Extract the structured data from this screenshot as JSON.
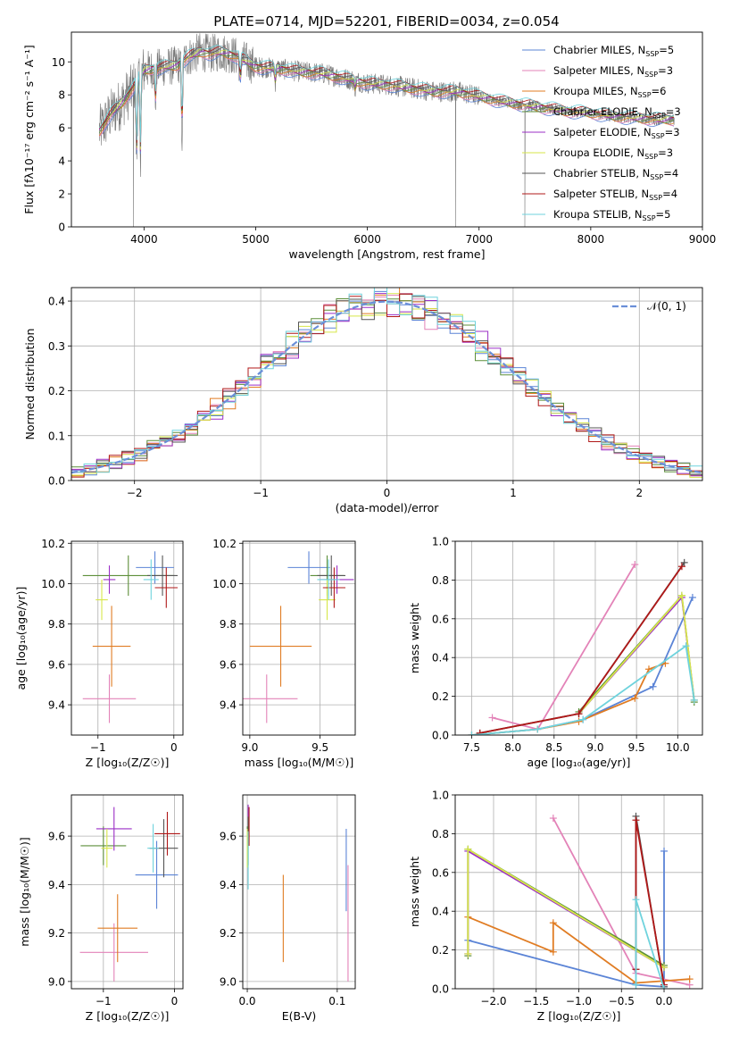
{
  "title": "PLATE=0714, MJD=52201, FIBERID=0034, z=0.054",
  "colors": {
    "chabrier_miles": "#5b84d6",
    "salpeter_miles": "#e383b8",
    "kroupa_miles": "#e07c23",
    "chabrier_elodie": "#5d8f3a",
    "salpeter_elodie": "#9b2fc6",
    "kroupa_elodie": "#d7e64a",
    "chabrier_stelib": "#555555",
    "salpeter_stelib": "#b01818",
    "kroupa_stelib": "#6fd3dd",
    "data": "#777777",
    "normal": "#6b8fd8"
  },
  "chart_data": [
    {
      "id": "spectrum",
      "type": "line",
      "title": "PLATE=0714, MJD=52201, FIBERID=0034, z=0.054",
      "xlabel": "wavelength [Angstrom, rest frame]",
      "ylabel": "Flux [fλ10⁻¹⁷ erg cm⁻² s⁻¹ A⁻¹]",
      "xlim": [
        3350,
        9000
      ],
      "ylim": [
        0,
        11.8
      ],
      "xticks": [
        "4000",
        "5000",
        "6000",
        "7000",
        "8000",
        "9000"
      ],
      "yticks": [
        "0",
        "2",
        "4",
        "6",
        "8",
        "10"
      ],
      "legend": "top-right",
      "series": [
        {
          "name": "Chabrier MILES, N_SSP=5",
          "label_main": "Chabrier MILES, N",
          "label_sub": "SSP",
          "label_tail": "=5"
        },
        {
          "name": "Salpeter MILES, N_SSP=3",
          "label_main": "Salpeter MILES, N",
          "label_sub": "SSP",
          "label_tail": "=3"
        },
        {
          "name": "Kroupa MILES, N_SSP=6",
          "label_main": "Kroupa MILES, N",
          "label_sub": "SSP",
          "label_tail": "=6"
        },
        {
          "name": "Chabrier ELODIE, N_SSP=3",
          "label_main": "Chabrier ELODIE, N",
          "label_sub": "SSP",
          "label_tail": "=3"
        },
        {
          "name": "Salpeter ELODIE, N_SSP=3",
          "label_main": "Salpeter ELODIE, N",
          "label_sub": "SSP",
          "label_tail": "=3"
        },
        {
          "name": "Kroupa ELODIE, N_SSP=3",
          "label_main": "Kroupa ELODIE, N",
          "label_sub": "SSP",
          "label_tail": "=3"
        },
        {
          "name": "Chabrier STELIB, N_SSP=4",
          "label_main": "Chabrier STELIB, N",
          "label_sub": "SSP",
          "label_tail": "=4"
        },
        {
          "name": "Salpeter STELIB, N_SSP=4",
          "label_main": "Salpeter STELIB, N",
          "label_sub": "SSP",
          "label_tail": "=4"
        },
        {
          "name": "Kroupa STELIB, N_SSP=5",
          "label_main": "Kroupa STELIB, N",
          "label_sub": "SSP",
          "label_tail": "=5"
        }
      ],
      "continuum": {
        "x": [
          3600,
          3700,
          3800,
          3900,
          4000,
          4100,
          4200,
          4300,
          4400,
          4500,
          4600,
          4700,
          4800,
          4900,
          5000,
          5200,
          5400,
          5600,
          5800,
          6000,
          6200,
          6400,
          6600,
          6800,
          7000,
          7200,
          7400,
          7600,
          7800,
          8000,
          8200,
          8400,
          8600,
          8750
        ],
        "y": [
          5.8,
          6.8,
          7.5,
          8.4,
          9.5,
          9.6,
          9.7,
          9.8,
          10.3,
          10.6,
          10.5,
          10.6,
          10.4,
          10.1,
          9.7,
          9.6,
          9.4,
          9.3,
          9.0,
          8.7,
          8.6,
          8.4,
          8.2,
          8.2,
          7.9,
          7.6,
          7.4,
          7.2,
          7.0,
          6.9,
          6.7,
          6.6,
          6.5,
          6.5
        ]
      },
      "absorption_lines": [
        {
          "x": 3934,
          "y": 3.5
        },
        {
          "x": 3968,
          "y": 4.2
        },
        {
          "x": 4102,
          "y": 7.4
        },
        {
          "x": 4340,
          "y": 5.1
        },
        {
          "x": 4861,
          "y": 8.6
        },
        {
          "x": 5175,
          "y": 8.8
        },
        {
          "x": 5890,
          "y": 8.4
        }
      ],
      "data_glitches": [
        {
          "x": 3905,
          "y": 0
        },
        {
          "x": 6790,
          "y": 0
        },
        {
          "x": 7410,
          "y": 0
        }
      ]
    },
    {
      "id": "residuals",
      "type": "histogram",
      "xlabel": "(data-model)/error",
      "ylabel": "Normed distribution",
      "xlim": [
        -2.5,
        2.5
      ],
      "ylim": [
        0,
        0.43
      ],
      "xticks": [
        "−2",
        "−1",
        "0",
        "1",
        "2"
      ],
      "yticks": [
        "0.0",
        "0.1",
        "0.2",
        "0.3",
        "0.4"
      ],
      "legend": "top-right",
      "legend_label": "𝒩(0, 1)",
      "bin_width": 0.1
    },
    {
      "id": "age_vs_Z",
      "type": "errorbar",
      "xlabel": "Z [log₁₀(Z/Z☉)]",
      "ylabel": "age  [log₁₀(age/yr)]",
      "xlim": [
        -1.35,
        0.12
      ],
      "ylim": [
        9.25,
        10.21
      ],
      "xticks": [
        "−1",
        "0"
      ],
      "yticks": [
        "9.4",
        "9.6",
        "9.8",
        "10.0",
        "10.2"
      ],
      "points": [
        {
          "series": "chabrier_miles",
          "x": -0.25,
          "xerr": 0.25,
          "y": 10.08,
          "yerr": 0.08
        },
        {
          "series": "salpeter_miles",
          "x": -0.85,
          "xerr": 0.35,
          "y": 9.43,
          "yerr": 0.12
        },
        {
          "series": "kroupa_miles",
          "x": -0.82,
          "xerr": 0.25,
          "y": 9.69,
          "yerr": 0.2
        },
        {
          "series": "chabrier_elodie",
          "x": -0.6,
          "xerr": 0.6,
          "y": 10.04,
          "yerr": 0.1
        },
        {
          "series": "salpeter_elodie",
          "x": -0.85,
          "xerr": 0.08,
          "y": 10.02,
          "yerr": 0.07
        },
        {
          "series": "kroupa_elodie",
          "x": -0.95,
          "xerr": 0.08,
          "y": 9.92,
          "yerr": 0.1
        },
        {
          "series": "chabrier_stelib",
          "x": -0.15,
          "xerr": 0.2,
          "y": 10.04,
          "yerr": 0.1
        },
        {
          "series": "salpeter_stelib",
          "x": -0.1,
          "xerr": 0.15,
          "y": 9.98,
          "yerr": 0.1
        },
        {
          "series": "kroupa_stelib",
          "x": -0.3,
          "xerr": 0.1,
          "y": 10.02,
          "yerr": 0.1
        }
      ]
    },
    {
      "id": "age_vs_mass",
      "type": "errorbar",
      "xlabel": "mass [log₁₀(M/M☉)]",
      "ylabel": "",
      "xlim": [
        8.95,
        9.75
      ],
      "ylim": [
        9.25,
        10.21
      ],
      "xticks": [
        "9.0",
        "9.5"
      ],
      "yticks": [
        "9.4",
        "9.6",
        "9.8",
        "10.0",
        "10.2"
      ],
      "points": [
        {
          "series": "chabrier_miles",
          "x": 9.42,
          "xerr": 0.15,
          "y": 10.08,
          "yerr": 0.08
        },
        {
          "series": "salpeter_miles",
          "x": 9.12,
          "xerr": 0.22,
          "y": 9.43,
          "yerr": 0.12
        },
        {
          "series": "kroupa_miles",
          "x": 9.22,
          "xerr": 0.22,
          "y": 9.69,
          "yerr": 0.2
        },
        {
          "series": "chabrier_elodie",
          "x": 9.55,
          "xerr": 0.12,
          "y": 10.04,
          "yerr": 0.1
        },
        {
          "series": "salpeter_elodie",
          "x": 9.62,
          "xerr": 0.12,
          "y": 10.02,
          "yerr": 0.07
        },
        {
          "series": "kroupa_elodie",
          "x": 9.55,
          "xerr": 0.06,
          "y": 9.92,
          "yerr": 0.1
        },
        {
          "series": "chabrier_stelib",
          "x": 9.58,
          "xerr": 0.1,
          "y": 10.04,
          "yerr": 0.1
        },
        {
          "series": "salpeter_stelib",
          "x": 9.6,
          "xerr": 0.08,
          "y": 9.98,
          "yerr": 0.1
        },
        {
          "series": "kroupa_stelib",
          "x": 9.56,
          "xerr": 0.08,
          "y": 10.02,
          "yerr": 0.1
        }
      ]
    },
    {
      "id": "weight_vs_age",
      "type": "line",
      "xlabel": "age  [log₁₀(age/yr)]",
      "ylabel": "mass weight",
      "xlim": [
        7.3,
        10.3
      ],
      "ylim": [
        0,
        1
      ],
      "xticks": [
        "7.5",
        "8.0",
        "8.5",
        "9.0",
        "9.5",
        "10.0"
      ],
      "yticks": [
        "0.0",
        "0.2",
        "0.4",
        "0.6",
        "0.8",
        "1.0"
      ],
      "series": [
        {
          "key": "chabrier_miles",
          "x": [
            7.5,
            8.3,
            8.85,
            9.7,
            10.18
          ],
          "y": [
            0.0,
            0.03,
            0.08,
            0.25,
            0.71
          ]
        },
        {
          "key": "salpeter_miles",
          "x": [
            7.75,
            8.3,
            9.48
          ],
          "y": [
            0.09,
            0.03,
            0.88
          ]
        },
        {
          "key": "kroupa_miles",
          "x": [
            7.5,
            8.3,
            8.8,
            9.48,
            9.65,
            9.85
          ],
          "y": [
            0.0,
            0.03,
            0.07,
            0.19,
            0.34,
            0.37
          ]
        },
        {
          "key": "chabrier_elodie",
          "x": [
            8.8,
            10.05,
            10.2
          ],
          "y": [
            0.12,
            0.72,
            0.17
          ]
        },
        {
          "key": "salpeter_elodie",
          "x": [
            8.8,
            10.05,
            10.2
          ],
          "y": [
            0.11,
            0.71,
            0.18
          ]
        },
        {
          "key": "kroupa_elodie",
          "x": [
            8.8,
            10.05,
            10.2
          ],
          "y": [
            0.11,
            0.72,
            0.18
          ]
        },
        {
          "key": "chabrier_stelib",
          "x": [
            7.6,
            8.8,
            10.08
          ],
          "y": [
            0.01,
            0.11,
            0.89
          ]
        },
        {
          "key": "salpeter_stelib",
          "x": [
            7.6,
            8.8,
            10.05
          ],
          "y": [
            0.01,
            0.11,
            0.87
          ]
        },
        {
          "key": "kroupa_stelib",
          "x": [
            7.5,
            8.3,
            8.85,
            10.1,
            10.2
          ],
          "y": [
            0.0,
            0.03,
            0.08,
            0.46,
            0.18
          ]
        }
      ]
    },
    {
      "id": "mass_vs_Z",
      "type": "errorbar",
      "xlabel": "Z [log₁₀(Z/Z☉)]",
      "ylabel": "mass [log₁₀(M/M☉)]",
      "xlim": [
        -1.45,
        0.12
      ],
      "ylim": [
        8.97,
        9.77
      ],
      "xticks": [
        "−1",
        "0"
      ],
      "yticks": [
        "9.0",
        "9.2",
        "9.4",
        "9.6"
      ],
      "points": [
        {
          "series": "chabrier_miles",
          "x": -0.25,
          "xerr": 0.3,
          "y": 9.44,
          "yerr": 0.14
        },
        {
          "series": "salpeter_miles",
          "x": -0.85,
          "xerr": 0.48,
          "y": 9.12,
          "yerr": 0.12
        },
        {
          "series": "kroupa_miles",
          "x": -0.8,
          "xerr": 0.28,
          "y": 9.22,
          "yerr": 0.14
        },
        {
          "series": "chabrier_elodie",
          "x": -1.0,
          "xerr": 0.32,
          "y": 9.56,
          "yerr": 0.08
        },
        {
          "series": "salpeter_elodie",
          "x": -0.85,
          "xerr": 0.25,
          "y": 9.63,
          "yerr": 0.09
        },
        {
          "series": "kroupa_elodie",
          "x": -0.95,
          "xerr": 0.08,
          "y": 9.55,
          "yerr": 0.08
        },
        {
          "series": "chabrier_stelib",
          "x": -0.15,
          "xerr": 0.2,
          "y": 9.55,
          "yerr": 0.12
        },
        {
          "series": "salpeter_stelib",
          "x": -0.1,
          "xerr": 0.18,
          "y": 9.61,
          "yerr": 0.09
        },
        {
          "series": "kroupa_stelib",
          "x": -0.3,
          "xerr": 0.08,
          "y": 9.55,
          "yerr": 0.1
        }
      ]
    },
    {
      "id": "mass_vs_ebv",
      "type": "errorbar",
      "xlabel": "E(B-V)",
      "ylabel": "",
      "xlim": [
        -0.005,
        0.12
      ],
      "ylim": [
        8.97,
        9.77
      ],
      "xticks": [
        "0.0",
        "0.1"
      ],
      "yticks": [
        "9.0",
        "9.2",
        "9.4",
        "9.6"
      ],
      "points": [
        {
          "series": "chabrier_miles",
          "x": 0.11,
          "xerr": 0,
          "y": 9.46,
          "yerr": 0.17
        },
        {
          "series": "salpeter_miles",
          "x": 0.112,
          "xerr": 0,
          "y": 9.24,
          "yerr": 0.24
        },
        {
          "series": "kroupa_miles",
          "x": 0.04,
          "xerr": 0,
          "y": 9.26,
          "yerr": 0.18
        },
        {
          "series": "chabrier_elodie",
          "x": 0.0,
          "xerr": 0,
          "y": 9.56,
          "yerr": 0.08
        },
        {
          "series": "salpeter_elodie",
          "x": 0.001,
          "xerr": 0,
          "y": 9.65,
          "yerr": 0.08
        },
        {
          "series": "kroupa_elodie",
          "x": 0.0,
          "xerr": 0,
          "y": 9.55,
          "yerr": 0.08
        },
        {
          "series": "chabrier_stelib",
          "x": 0.001,
          "xerr": 0,
          "y": 9.58,
          "yerr": 0.1
        },
        {
          "series": "salpeter_stelib",
          "x": 0.002,
          "xerr": 0,
          "y": 9.64,
          "yerr": 0.08
        },
        {
          "series": "kroupa_stelib",
          "x": 0.001,
          "xerr": 0,
          "y": 9.5,
          "yerr": 0.12
        }
      ]
    },
    {
      "id": "weight_vs_Z",
      "type": "line",
      "xlabel": "Z [log₁₀(Z/Z☉)]",
      "ylabel": "mass weight",
      "xlim": [
        -2.45,
        0.45
      ],
      "ylim": [
        0,
        1
      ],
      "xticks": [
        "−2.0",
        "−1.5",
        "−1.0",
        "−0.5",
        "0.0"
      ],
      "yticks": [
        "0.0",
        "0.2",
        "0.4",
        "0.6",
        "0.8",
        "1.0"
      ],
      "series": [
        {
          "key": "chabrier_miles",
          "x": [
            -2.3,
            -0.33,
            0.0,
            0.0
          ],
          "y": [
            0.25,
            0.02,
            0.01,
            0.71
          ]
        },
        {
          "key": "salpeter_miles",
          "x": [
            -1.3,
            -0.33,
            0.3
          ],
          "y": [
            0.88,
            0.08,
            0.02
          ]
        },
        {
          "key": "kroupa_miles",
          "x": [
            -2.3,
            -1.3,
            -1.3,
            -0.33,
            0.3
          ],
          "y": [
            0.37,
            0.19,
            0.34,
            0.03,
            0.05
          ]
        },
        {
          "key": "chabrier_elodie",
          "x": [
            -2.3,
            -2.3,
            0.0
          ],
          "y": [
            0.17,
            0.72,
            0.12
          ]
        },
        {
          "key": "salpeter_elodie",
          "x": [
            -2.3,
            -2.3,
            0.0
          ],
          "y": [
            0.18,
            0.71,
            0.11
          ]
        },
        {
          "key": "kroupa_elodie",
          "x": [
            -2.3,
            -2.3,
            0.0
          ],
          "y": [
            0.18,
            0.72,
            0.11
          ]
        },
        {
          "key": "chabrier_stelib",
          "x": [
            -0.33,
            -0.33,
            0.0
          ],
          "y": [
            0.1,
            0.89,
            0.01
          ]
        },
        {
          "key": "salpeter_stelib",
          "x": [
            -0.33,
            -0.33,
            0.0
          ],
          "y": [
            0.1,
            0.87,
            0.02
          ]
        },
        {
          "key": "kroupa_stelib",
          "x": [
            -0.33,
            -0.33,
            0.0
          ],
          "y": [
            0.02,
            0.46,
            0.0
          ]
        }
      ]
    }
  ]
}
